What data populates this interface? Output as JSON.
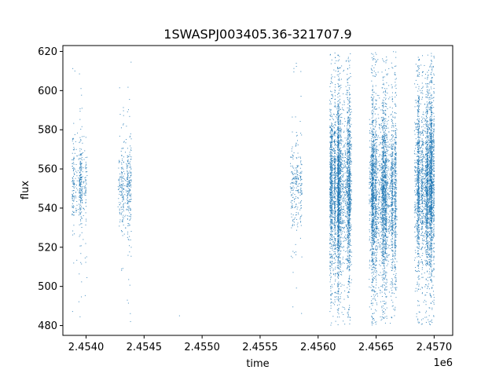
{
  "chart_data": {
    "type": "scatter",
    "title": "1SWASPJ003405.36-321707.9",
    "xlabel": "time",
    "ylabel": "flux",
    "x_offset_label": "1e6",
    "xlim": [
      2453800,
      2457160
    ],
    "ylim": [
      475,
      623
    ],
    "x_ticks": [
      2454000,
      2454500,
      2455000,
      2455500,
      2456000,
      2456500,
      2457000
    ],
    "x_tick_labels": [
      "2.4540",
      "2.4545",
      "2.4550",
      "2.4555",
      "2.4560",
      "2.4565",
      "2.4570"
    ],
    "y_ticks": [
      480,
      500,
      520,
      540,
      560,
      580,
      600,
      620
    ],
    "y_tick_labels": [
      "480",
      "500",
      "520",
      "540",
      "560",
      "580",
      "600",
      "620"
    ],
    "grid": false,
    "legend": "none",
    "marker_color": "#1f77b4",
    "clusters": [
      {
        "x_min": 2453880,
        "x_max": 2454010,
        "center": 553,
        "spread": 10,
        "count": 420
      },
      {
        "x_min": 2454275,
        "x_max": 2454390,
        "center": 550,
        "spread": 10,
        "count": 380
      },
      {
        "x_min": 2455760,
        "x_max": 2455860,
        "center": 552,
        "spread": 10,
        "count": 260
      },
      {
        "x_min": 2456100,
        "x_max": 2456290,
        "center": 550,
        "spread": 20,
        "count": 3600
      },
      {
        "x_min": 2456440,
        "x_max": 2456680,
        "center": 548,
        "spread": 20,
        "count": 3600
      },
      {
        "x_min": 2456830,
        "x_max": 2457000,
        "center": 552,
        "spread": 20,
        "count": 3200
      }
    ],
    "isolated_points": [
      {
        "x": 2454805,
        "y": 485
      }
    ]
  }
}
